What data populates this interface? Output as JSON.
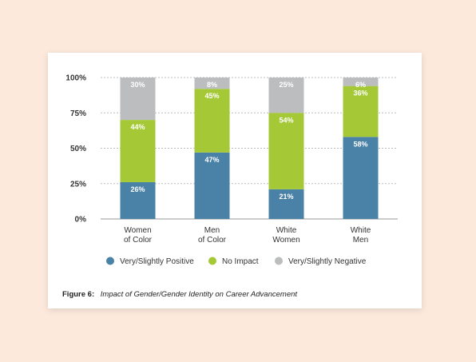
{
  "chart_data": {
    "type": "bar",
    "stacked": true,
    "categories": [
      "Women\nof Color",
      "Men\nof Color",
      "White\nWomen",
      "White\nMen"
    ],
    "series": [
      {
        "name": "Very/Slightly Positive",
        "values": [
          26,
          47,
          21,
          58
        ],
        "color": "#4a81a6"
      },
      {
        "name": "No Impact",
        "values": [
          44,
          45,
          54,
          36
        ],
        "color": "#a5c936"
      },
      {
        "name": "Very/Slightly Negative",
        "values": [
          30,
          8,
          25,
          6
        ],
        "color": "#bbbdbf"
      }
    ],
    "y_ticks": [
      "0%",
      "25%",
      "50%",
      "75%",
      "100%"
    ],
    "ylim": [
      0,
      100
    ],
    "value_suffix": "%",
    "grid": true,
    "grid_style": "dashed",
    "legend_position": "bottom"
  },
  "caption": {
    "label": "Figure 6:",
    "text": "Impact of Gender/Gender Identity on Career Advancement"
  }
}
